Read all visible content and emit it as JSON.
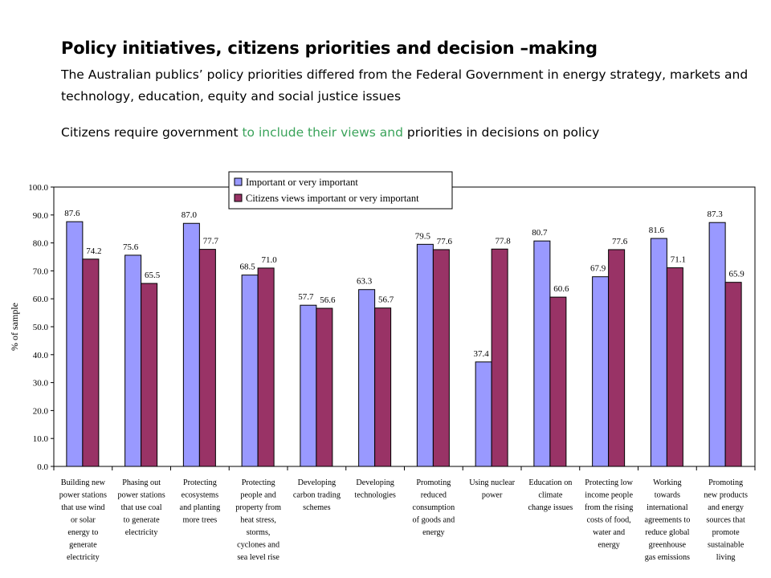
{
  "heading": {
    "title": "Policy initiatives, citizens priorities and decision –making",
    "subtitle": "The Australian publics’ policy priorities  differed from the Federal Government in energy strategy, markets and technology, education, equity and social justice issues",
    "note_before": "Citizens require government ",
    "note_highlight": "to include their views and",
    "note_after": " priorities in decisions on policy"
  },
  "colors": {
    "series_1": "#9999ff",
    "series_2": "#993366",
    "note_highlight": "#3aa35a"
  },
  "chart_data": {
    "type": "bar",
    "ylabel": "% of sample",
    "xlabel": "",
    "ylim": [
      0,
      100
    ],
    "yticks": [
      "0.0",
      "10.0",
      "20.0",
      "30.0",
      "40.0",
      "50.0",
      "60.0",
      "70.0",
      "80.0",
      "90.0",
      "100.0"
    ],
    "grid": false,
    "legend_position": "top-center",
    "categories": [
      [
        "Building new",
        "power stations",
        "that use wind",
        "or solar",
        "energy to",
        "generate",
        "electricity"
      ],
      [
        "Phasing out",
        "power stations",
        "that use coal",
        "to generate",
        "electricity"
      ],
      [
        "Protecting",
        "ecosystems",
        "and planting",
        "more trees"
      ],
      [
        "Protecting",
        "people and",
        "property from",
        "heat stress,",
        "storms,",
        "cyclones and",
        "sea level rise"
      ],
      [
        "Developing",
        "carbon trading",
        "schemes"
      ],
      [
        "Developing",
        "technologies"
      ],
      [
        "Promoting",
        "reduced",
        "consumption",
        "of goods and",
        "energy"
      ],
      [
        "Using nuclear",
        "power"
      ],
      [
        "Education on",
        "climate",
        "change issues"
      ],
      [
        "Protecting low",
        "income people",
        "from the rising",
        "costs of food,",
        "water and",
        "energy"
      ],
      [
        "Working",
        "towards",
        "international",
        "agreements to",
        "reduce global",
        "greenhouse",
        "gas emissions"
      ],
      [
        "Promoting",
        "new products",
        "and energy",
        "sources that",
        "promote",
        "sustainable",
        "living"
      ]
    ],
    "series": [
      {
        "name": "Important or very important",
        "values": [
          87.6,
          75.6,
          87.0,
          68.5,
          57.7,
          63.3,
          79.5,
          37.4,
          80.7,
          67.9,
          81.6,
          87.3
        ],
        "labels": [
          "87.6",
          "75.6",
          "87.0",
          "68.5",
          "57.7",
          "63.3",
          "79.5",
          "37.4",
          "80.7",
          "67.9",
          "81.6",
          "87.3"
        ]
      },
      {
        "name": "Citizens views important or very important",
        "values": [
          74.2,
          65.5,
          77.7,
          71.0,
          56.6,
          56.7,
          77.6,
          77.8,
          60.6,
          77.6,
          71.1,
          65.9
        ],
        "labels": [
          "74.2",
          "65.5",
          "77.7",
          "71.0",
          "56.6",
          "56.7",
          "77.6",
          "77.8",
          "60.6",
          "77.6",
          "71.1",
          "65.9"
        ]
      }
    ]
  }
}
